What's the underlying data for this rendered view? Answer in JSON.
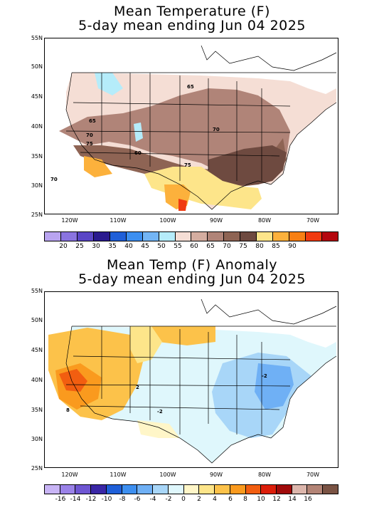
{
  "panel1": {
    "title_line1": "Mean Temperature (F)",
    "title_line2": "5-day mean ending Jun 04 2025",
    "lat_labels": [
      "55N",
      "50N",
      "45N",
      "40N",
      "35N",
      "30N",
      "25N"
    ],
    "lon_labels": [
      "120W",
      "110W",
      "100W",
      "90W",
      "80W",
      "70W"
    ],
    "colorbar": {
      "colors": [
        "#b9a4f0",
        "#8a74e0",
        "#5a46c6",
        "#2a1a8e",
        "#1f5fd8",
        "#3d8ff0",
        "#73b5f5",
        "#b5ecfa",
        "#f5ded5",
        "#d4ada0",
        "#b08478",
        "#8e6454",
        "#6e4a40",
        "#fde58a",
        "#fcb13c",
        "#f77f13",
        "#f03a10",
        "#b4060e"
      ],
      "labels": [
        "20",
        "25",
        "30",
        "35",
        "40",
        "45",
        "50",
        "55",
        "60",
        "65",
        "70",
        "75",
        "80",
        "85",
        "90"
      ]
    },
    "contour_labels": [
      "65",
      "65",
      "70",
      "70",
      "75",
      "60",
      "70",
      "75"
    ]
  },
  "panel2": {
    "title_line1": "Mean Temp (F) Anomaly",
    "title_line2": "5-day mean ending Jun 04 2025",
    "lat_labels": [
      "55N",
      "50N",
      "45N",
      "40N",
      "35N",
      "30N",
      "25N"
    ],
    "lon_labels": [
      "120W",
      "110W",
      "100W",
      "90W",
      "80W",
      "70W"
    ],
    "colorbar": {
      "colors": [
        "#c8b4f5",
        "#9a82e8",
        "#6e56d2",
        "#3a27a6",
        "#1f5fd8",
        "#3d8ff0",
        "#6fb0f5",
        "#a8d6f8",
        "#dff7fc",
        "#fff6c8",
        "#fde58a",
        "#fcc24a",
        "#fa9a1e",
        "#f25e10",
        "#dc1e0a",
        "#a00a0a",
        "#dcb6ac",
        "#b38476",
        "#7a5344"
      ],
      "labels": [
        "-16",
        "-14",
        "-12",
        "-10",
        "-8",
        "-6",
        "-4",
        "-2",
        "0",
        "2",
        "4",
        "6",
        "8",
        "10",
        "12",
        "14",
        "16"
      ]
    },
    "contour_labels": [
      "2",
      "-2",
      "-2",
      "8"
    ]
  },
  "icons": {
    "map1": "usa-temperature-map",
    "map2": "usa-anomaly-map"
  }
}
